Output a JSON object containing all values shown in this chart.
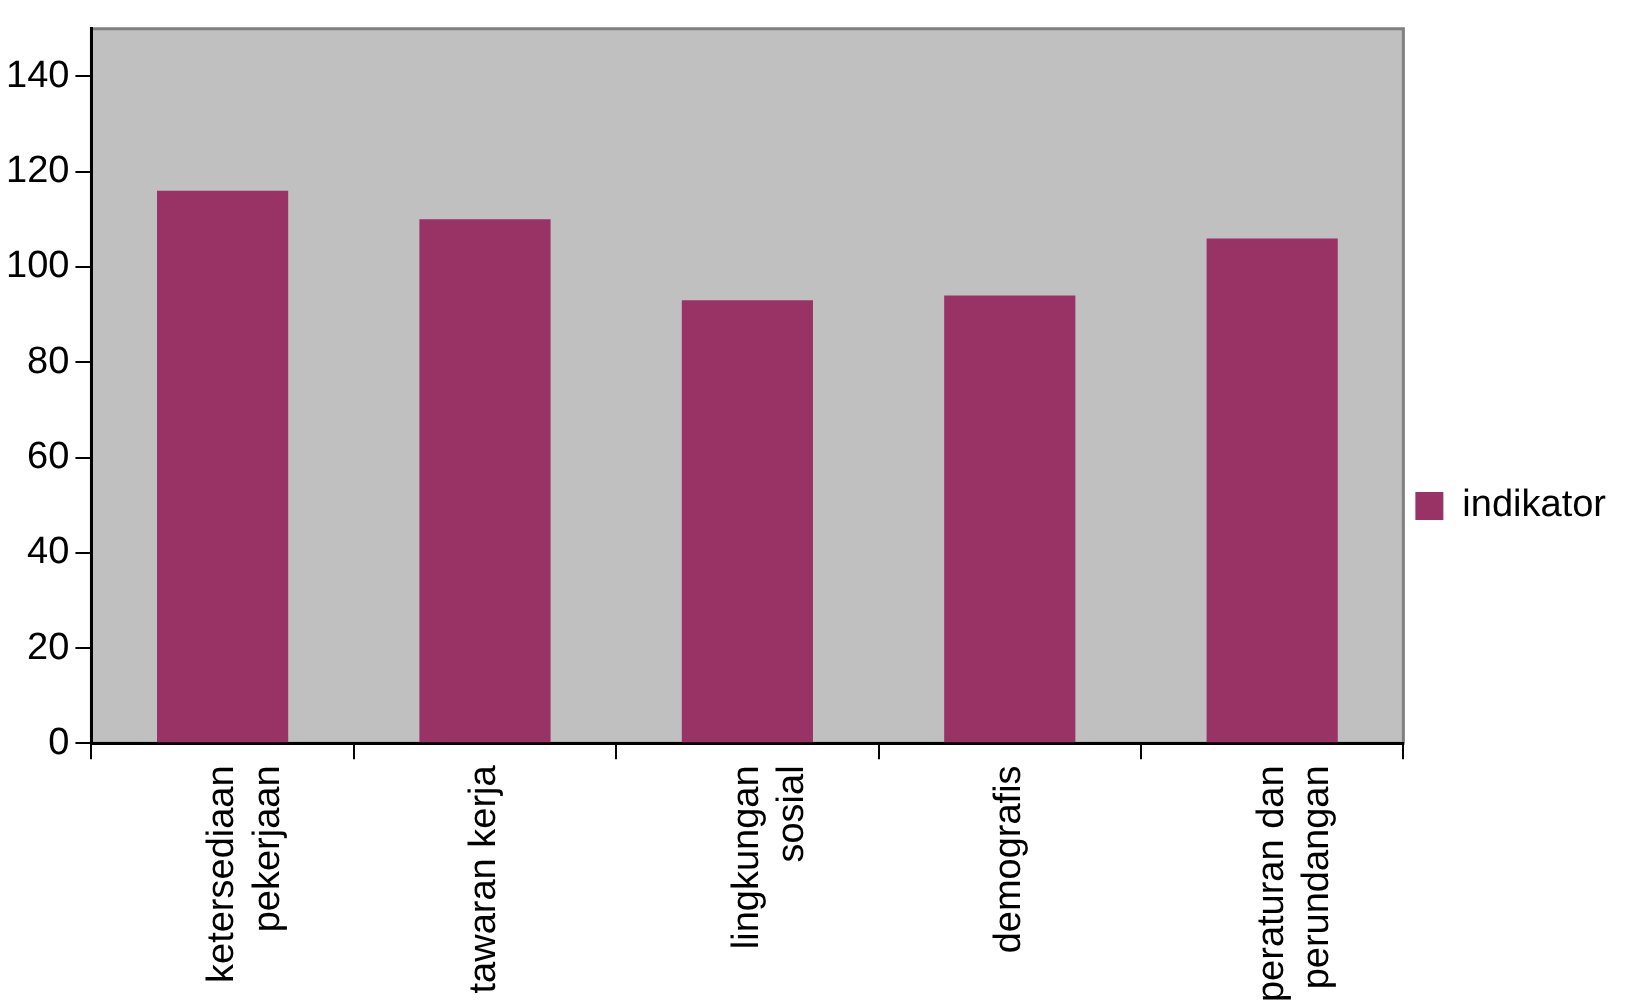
{
  "chart_data": {
    "type": "bar",
    "categories": [
      "ketersediaan pekerjaan",
      "tawaran kerja",
      "lingkungan sosial",
      "demografis",
      "peraturan dan perundangan"
    ],
    "series": [
      {
        "name": "indikator",
        "color": "#993366",
        "values": [
          116,
          110,
          93,
          94,
          106
        ]
      }
    ],
    "ylim": [
      0,
      150
    ],
    "yticks": [
      0,
      20,
      40,
      60,
      80,
      100,
      120,
      140
    ],
    "grid": false,
    "legend": "right"
  }
}
